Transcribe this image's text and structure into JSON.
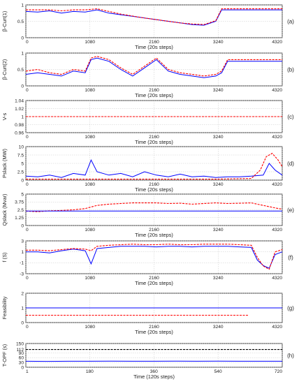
{
  "chart_data": [
    {
      "type": "line",
      "tag": "(a)",
      "ylabel": "β-Curt(1)",
      "xlabel": "Time (20s steps)",
      "xlim": [
        0,
        4320
      ],
      "xticks": [
        "0",
        "1080",
        "2160",
        "3240",
        "4320"
      ],
      "ylim": [
        0,
        1
      ],
      "yticks": [
        "0",
        "0.5",
        "1"
      ],
      "series": [
        {
          "color": "#0000ff",
          "style": "solid",
          "x": [
            0,
            200,
            400,
            600,
            800,
            1000,
            1200,
            1400,
            1600,
            1800,
            2000,
            2200,
            2400,
            2600,
            2800,
            3000,
            3200,
            3300,
            3400,
            3600,
            3800,
            4000,
            4200,
            4320
          ],
          "y": [
            0.8,
            0.78,
            0.82,
            0.75,
            0.8,
            0.78,
            0.85,
            0.75,
            0.7,
            0.65,
            0.6,
            0.55,
            0.5,
            0.45,
            0.4,
            0.38,
            0.5,
            0.85,
            0.85,
            0.85,
            0.85,
            0.85,
            0.85,
            0.85
          ]
        },
        {
          "color": "#ff0000",
          "style": "dashed",
          "x": [
            0,
            200,
            400,
            600,
            800,
            1000,
            1200,
            1400,
            1600,
            1800,
            2000,
            2200,
            2400,
            2600,
            2800,
            3000,
            3200,
            3300,
            3400,
            3600,
            3800,
            4000,
            4200,
            4320
          ],
          "y": [
            0.85,
            0.85,
            0.85,
            0.82,
            0.85,
            0.85,
            0.88,
            0.8,
            0.72,
            0.66,
            0.6,
            0.55,
            0.5,
            0.45,
            0.42,
            0.4,
            0.52,
            0.88,
            0.88,
            0.88,
            0.88,
            0.88,
            0.88,
            0.88
          ]
        }
      ]
    },
    {
      "type": "line",
      "tag": "(b)",
      "ylabel": "β-Curt(2)",
      "xlabel": "Time (20s steps)",
      "xlim": [
        0,
        4320
      ],
      "xticks": [
        "0",
        "1080",
        "2160",
        "3240",
        "4320"
      ],
      "ylim": [
        0,
        1
      ],
      "yticks": [
        "0",
        "0.5",
        "1"
      ],
      "series": [
        {
          "color": "#0000ff",
          "style": "solid",
          "x": [
            0,
            200,
            400,
            600,
            800,
            1000,
            1100,
            1200,
            1400,
            1600,
            1800,
            2000,
            2200,
            2400,
            2600,
            2800,
            3000,
            3200,
            3300,
            3400,
            3600,
            3800,
            4000,
            4200,
            4320
          ],
          "y": [
            0.35,
            0.4,
            0.35,
            0.3,
            0.45,
            0.4,
            0.8,
            0.85,
            0.75,
            0.5,
            0.3,
            0.55,
            0.8,
            0.45,
            0.35,
            0.3,
            0.25,
            0.3,
            0.4,
            0.75,
            0.75,
            0.75,
            0.75,
            0.75,
            0.75
          ]
        },
        {
          "color": "#ff0000",
          "style": "dashed",
          "x": [
            0,
            200,
            400,
            600,
            800,
            1000,
            1100,
            1200,
            1400,
            1600,
            1800,
            2000,
            2200,
            2400,
            2600,
            2800,
            3000,
            3200,
            3300,
            3400,
            3600,
            3800,
            4000,
            4200,
            4320
          ],
          "y": [
            0.45,
            0.5,
            0.4,
            0.35,
            0.5,
            0.45,
            0.85,
            0.9,
            0.8,
            0.55,
            0.35,
            0.6,
            0.85,
            0.5,
            0.4,
            0.35,
            0.3,
            0.35,
            0.45,
            0.8,
            0.8,
            0.8,
            0.8,
            0.8,
            0.8
          ]
        }
      ]
    },
    {
      "type": "line",
      "tag": "(c)",
      "ylabel": "V-s",
      "xlabel": "Time (20s steps)",
      "xlim": [
        0,
        4320
      ],
      "xticks": [
        "0",
        "1080",
        "2160",
        "3240",
        "4320"
      ],
      "ylim": [
        0.96,
        1.04
      ],
      "yticks": [
        "0.96",
        "0.98",
        "1",
        "1.02",
        "1.04"
      ],
      "series": [
        {
          "color": "#ff0000",
          "style": "dashed",
          "x": [
            0,
            4320
          ],
          "y": [
            1,
            1
          ]
        }
      ]
    },
    {
      "type": "line",
      "tag": "(d)",
      "ylabel": "Pslack (MW)",
      "xlabel": "Time (20s steps)",
      "xlim": [
        0,
        4320
      ],
      "xticks": [
        "0",
        "1080",
        "2160",
        "3240",
        "4320"
      ],
      "ylim": [
        0,
        10
      ],
      "yticks": [
        "0",
        "2.5",
        "5",
        "7.5",
        "10"
      ],
      "series": [
        {
          "color": "#0000ff",
          "style": "solid",
          "x": [
            0,
            200,
            400,
            600,
            800,
            1000,
            1100,
            1200,
            1400,
            1600,
            1800,
            2000,
            2200,
            2400,
            2600,
            2800,
            3000,
            3200,
            3400,
            3600,
            3800,
            4000,
            4100,
            4200,
            4320
          ],
          "y": [
            1.2,
            1,
            1.5,
            0.8,
            2,
            1.5,
            6,
            2.5,
            1.5,
            2,
            1,
            2.5,
            1.5,
            1,
            1.8,
            1,
            1.2,
            0.8,
            1,
            1,
            1.2,
            1.5,
            5,
            3,
            1.5
          ]
        },
        {
          "color": "#ff0000",
          "style": "dashed",
          "x": [
            0,
            800,
            1600,
            2400,
            3200,
            3800,
            3950,
            4050,
            4150,
            4250,
            4320
          ],
          "y": [
            0.3,
            0.3,
            0.3,
            0.3,
            0.3,
            0.5,
            3,
            7,
            8,
            6,
            4
          ]
        }
      ]
    },
    {
      "type": "line",
      "tag": "(e)",
      "ylabel": "Qslack (Mvar)",
      "xlabel": "Time (20s steps)",
      "xlim": [
        0,
        4320
      ],
      "xticks": [
        "0",
        "1080",
        "2160",
        "3240",
        "4320"
      ],
      "ylim": [
        0,
        5
      ],
      "yticks": [
        "0",
        "1.25",
        "2.5",
        "3.75",
        "5"
      ],
      "series": [
        {
          "color": "#ff0000",
          "style": "dashed",
          "x": [
            0,
            200,
            400,
            600,
            800,
            1000,
            1200,
            1400,
            1600,
            1800,
            2000,
            2200,
            2400,
            2600,
            2800,
            3000,
            3200,
            3400,
            3600,
            3800,
            4000,
            4200,
            4320
          ],
          "y": [
            2.3,
            2.2,
            2.35,
            2.4,
            2.5,
            2.7,
            3.2,
            3.4,
            3.5,
            3.6,
            3.6,
            3.6,
            3.5,
            3.55,
            3.4,
            3.5,
            3.6,
            3.5,
            3.55,
            3.6,
            3.2,
            2.8,
            2.6
          ]
        },
        {
          "color": "#0000ff",
          "style": "solid",
          "x": [
            0,
            4320
          ],
          "y": [
            2.3,
            2.3
          ]
        }
      ]
    },
    {
      "type": "line",
      "tag": "(f)",
      "ylabel": "f (S)",
      "xlabel": "Time (20s steps)",
      "xlim": [
        0,
        4320
      ],
      "xticks": [
        "0",
        "1080",
        "2160",
        "3240",
        "4320"
      ],
      "ylim": [
        -3,
        3
      ],
      "yticks": [
        "-3",
        "-1",
        "1",
        "3"
      ],
      "series": [
        {
          "color": "#0000ff",
          "style": "solid",
          "x": [
            0,
            200,
            400,
            600,
            800,
            1000,
            1100,
            1200,
            1400,
            1600,
            1800,
            2000,
            2200,
            2400,
            2600,
            2800,
            3000,
            3200,
            3400,
            3600,
            3800,
            3900,
            4000,
            4100,
            4200,
            4320
          ],
          "y": [
            1,
            1,
            0.8,
            1.2,
            1.5,
            1.2,
            -1.2,
            1.6,
            1.8,
            2,
            2,
            2,
            1.9,
            2,
            2,
            1.9,
            2,
            2,
            2,
            1.9,
            1.8,
            -0.5,
            -1.5,
            -2,
            0.5,
            1
          ]
        },
        {
          "color": "#ff0000",
          "style": "dashed",
          "x": [
            0,
            200,
            400,
            600,
            800,
            1000,
            1100,
            1200,
            1400,
            1600,
            1800,
            2000,
            2200,
            2400,
            2600,
            2800,
            3000,
            3200,
            3400,
            3600,
            3800,
            3900,
            4000,
            4100,
            4200,
            4320
          ],
          "y": [
            1.3,
            1.3,
            1.2,
            1.4,
            1.6,
            1.5,
            1.2,
            2,
            2.2,
            2.3,
            2.4,
            2.3,
            2.3,
            2.4,
            2.3,
            2.3,
            2.4,
            2.4,
            2.4,
            2.3,
            2.2,
            0,
            -1.6,
            -2.2,
            1,
            1.4
          ]
        }
      ]
    },
    {
      "type": "line",
      "tag": "(g)",
      "ylabel": "Feasibility",
      "xlabel": "Time (20s steps)",
      "xlim": [
        0,
        4320
      ],
      "xticks": [
        "0",
        "1080",
        "2160",
        "3240",
        "4320"
      ],
      "ylim": [
        0,
        2
      ],
      "yticks": [
        "0",
        "1",
        "2"
      ],
      "series": [
        {
          "color": "#0000ff",
          "style": "solid",
          "x": [
            0,
            4320
          ],
          "y": [
            1,
            1
          ]
        },
        {
          "color": "#ff0000",
          "style": "dashed",
          "x": [
            0,
            3750
          ],
          "y": [
            0.5,
            0.5
          ]
        }
      ]
    },
    {
      "type": "line",
      "tag": "(h)",
      "ylabel": "T-OPF (s)",
      "xlabel": "Time (120s steps)",
      "xlim": [
        1,
        720
      ],
      "xticks": [
        "1",
        "180",
        "360",
        "540",
        "720"
      ],
      "ylim": [
        0,
        150
      ],
      "yticks": [
        "0",
        "30",
        "60",
        "90",
        "112",
        "150"
      ],
      "series": [
        {
          "color": "#000000",
          "style": "dashed",
          "x": [
            1,
            720
          ],
          "y": [
            112,
            112
          ]
        },
        {
          "color": "#0000ff",
          "style": "solid",
          "x": [
            1,
            60,
            120,
            180,
            240,
            300,
            360,
            420,
            480,
            540,
            600,
            660,
            720
          ],
          "y": [
            38,
            37,
            38,
            38,
            39,
            38,
            38,
            39,
            38,
            39,
            38,
            38,
            38
          ]
        }
      ]
    }
  ]
}
